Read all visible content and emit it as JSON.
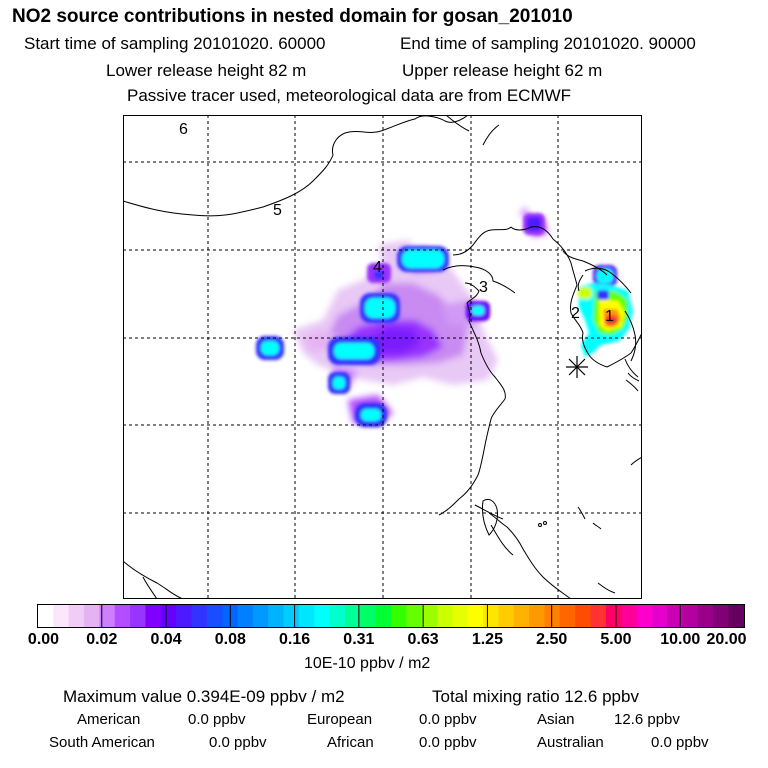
{
  "title": "NO2 source contributions in nested domain for gosan_201010",
  "header": {
    "start_label": "Start time of sampling 20101020. 60000",
    "end_label": "End time of sampling 20101020. 90000",
    "lower_release": "Lower release height   82 m",
    "upper_release": "Upper release height   62 m",
    "tracer_note": "Passive tracer used, meteorological data are from ECMWF"
  },
  "map": {
    "region_labels": [
      "1",
      "2",
      "3",
      "4",
      "5",
      "6"
    ],
    "receptor_marker": "asterisk-icon"
  },
  "colorbar": {
    "tick_labels": [
      "0.00",
      "0.02",
      "0.04",
      "0.08",
      "0.16",
      "0.31",
      "0.63",
      "1.25",
      "2.50",
      "5.00",
      "10.00",
      "20.00"
    ],
    "colors": [
      "#ffffff",
      "#fbe6fb",
      "#f0ccf6",
      "#e6b3f2",
      "#cc80ff",
      "#b34dff",
      "#9933ff",
      "#8000ff",
      "#6600ff",
      "#4d1aff",
      "#3333ff",
      "#1a4dff",
      "#0066ff",
      "#0080ff",
      "#0099ff",
      "#00b3ff",
      "#00ccff",
      "#00e6ff",
      "#00ffff",
      "#00ffcc",
      "#00ff99",
      "#00ff66",
      "#00ff33",
      "#33ff00",
      "#66ff00",
      "#99ff00",
      "#ccff00",
      "#e6ff00",
      "#ffff00",
      "#ffe600",
      "#ffcc00",
      "#ffb300",
      "#ff9900",
      "#ff8000",
      "#ff6600",
      "#ff4d00",
      "#ff3333",
      "#ff0066",
      "#ff0099",
      "#ff00cc",
      "#e600cc",
      "#cc00b3",
      "#b3009e",
      "#99008a",
      "#800075",
      "#660060"
    ],
    "unit": "10E-10 ppbv / m2"
  },
  "summary": {
    "max_value": "Maximum value  0.394E-09 ppbv / m2",
    "total_mixing": "Total mixing ratio       12.6 ppbv"
  },
  "regions": [
    {
      "name": "American",
      "value": "0.0 ppbv"
    },
    {
      "name": "European",
      "value": "0.0 ppbv"
    },
    {
      "name": "Asian",
      "value": "12.6 ppbv"
    },
    {
      "name": "South American",
      "value": "0.0 ppbv"
    },
    {
      "name": "African",
      "value": "0.0 ppbv"
    },
    {
      "name": "Australian",
      "value": "0.0 ppbv"
    }
  ]
}
